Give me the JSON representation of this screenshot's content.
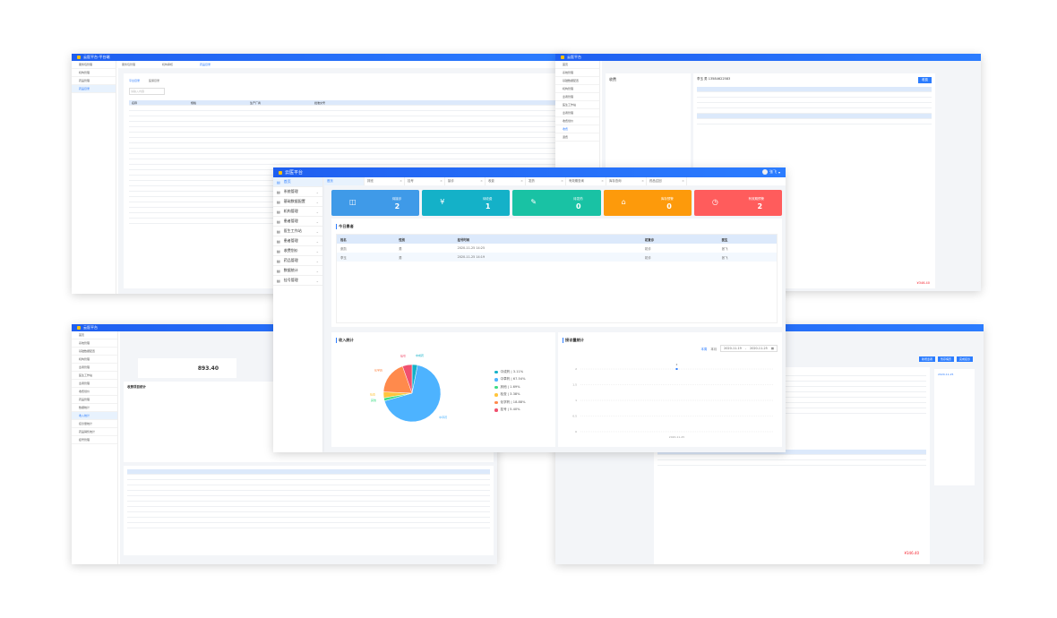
{
  "bg_windows": [
    {
      "title": "云医平台-平台端",
      "sidebar": [
        "服务包管理",
        "机构管理",
        "药品管理",
        "药品目录"
      ],
      "tabs": [
        "服务包管理",
        "机构审核",
        "药品目录"
      ],
      "subtabs": [
        "平台目录",
        "医保目录"
      ],
      "search_placeholder": "请输入内容",
      "columns": [
        "名称",
        "规格",
        "生产厂商",
        "批准文号"
      ]
    },
    {
      "title": "云医平台",
      "sidebar": [
        "首页",
        "系统管理",
        "基础数据配置",
        "机构管理",
        "患者管理",
        "医生工作站",
        "患者管理",
        "收费划价",
        "收费",
        "退费"
      ],
      "section": "收费",
      "patient": "李玉 男 13584622583",
      "pay_button": "收费",
      "total": "¥346.40"
    },
    {
      "title": "云医平台",
      "sidebar": [
        "首页",
        "系统管理",
        "基础数据配置",
        "机构管理",
        "患者管理",
        "医生工作站",
        "患者管理",
        "收费划价",
        "药品管理",
        "数据统计",
        "收入统计",
        "接诊量统计",
        "药品销售统计",
        "挂号管理"
      ],
      "stat_value": "893.40",
      "chart_title": "收费项目统计"
    },
    {
      "title": "云医平台",
      "buttons": [
        "新增患者",
        "暂存病历",
        "完成接诊"
      ],
      "history_title": "2020-11-25",
      "total": "¥346.40"
    }
  ],
  "header": {
    "title": "云医平台",
    "user": "张飞"
  },
  "sidebar": [
    {
      "label": "首页",
      "active": true
    },
    {
      "label": "系统管理"
    },
    {
      "label": "基础数据配置"
    },
    {
      "label": "机构管理"
    },
    {
      "label": "患者管理"
    },
    {
      "label": "医生工作站"
    },
    {
      "label": "患者管理"
    },
    {
      "label": "收费划价"
    },
    {
      "label": "药品管理"
    },
    {
      "label": "数据统计"
    },
    {
      "label": "挂号管理"
    }
  ],
  "tabs": [
    "首页",
    "排班",
    "挂号",
    "接诊",
    "收费",
    "发药",
    "有效期查询",
    "库存查询",
    "药品召回"
  ],
  "cards": [
    {
      "label": "待接诊",
      "value": "2",
      "color": "#3f9ae8",
      "icon": "◫"
    },
    {
      "label": "待收费",
      "value": "1",
      "color": "#14b1c8",
      "icon": "¥"
    },
    {
      "label": "待发药",
      "value": "0",
      "color": "#19c2a4",
      "icon": "✎"
    },
    {
      "label": "库存预警",
      "value": "0",
      "color": "#fd9a0b",
      "icon": "⌂"
    },
    {
      "label": "有效期预警",
      "value": "2",
      "color": "#ff5c5c",
      "icon": "◷"
    }
  ],
  "today": {
    "title": "今日患者",
    "columns": [
      "姓名",
      "性别",
      "挂号时间",
      "初复诊",
      "医生"
    ],
    "rows": [
      [
        "张凯",
        "男",
        "2020-11-25 14:25",
        "初诊",
        "张飞"
      ],
      [
        "李玉",
        "男",
        "2020-11-25 14:19",
        "初诊",
        "张飞"
      ]
    ]
  },
  "chart_data": [
    {
      "type": "pie",
      "title": "收入统计",
      "labels": [
        "中成药",
        "中草药",
        "其他",
        "检查",
        "化学药",
        "挂号"
      ],
      "values": [
        3.11,
        67.54,
        1.69,
        3.38,
        18.88,
        5.4
      ],
      "legend": [
        "中成药 | 3.11%",
        "中草药 | 67.54%",
        "其他 | 1.69%",
        "检查 | 3.38%",
        "化学药 | 18.88%",
        "挂号 | 5.40%"
      ],
      "colors": [
        "#14b1c8",
        "#4db3ff",
        "#3ddc84",
        "#ffc53d",
        "#ff8a4c",
        "#f0506e"
      ]
    },
    {
      "type": "line",
      "title": "接诊量统计",
      "range_buttons": [
        "本周",
        "本月"
      ],
      "date_start": "2020-11-19",
      "date_end": "2020-11-25",
      "x": [
        "2020-11-25"
      ],
      "y": [
        2
      ],
      "yticks": [
        "0",
        "0.5",
        "1",
        "1.5",
        "2"
      ],
      "ylim": [
        0,
        2
      ],
      "data_label": "2"
    }
  ]
}
